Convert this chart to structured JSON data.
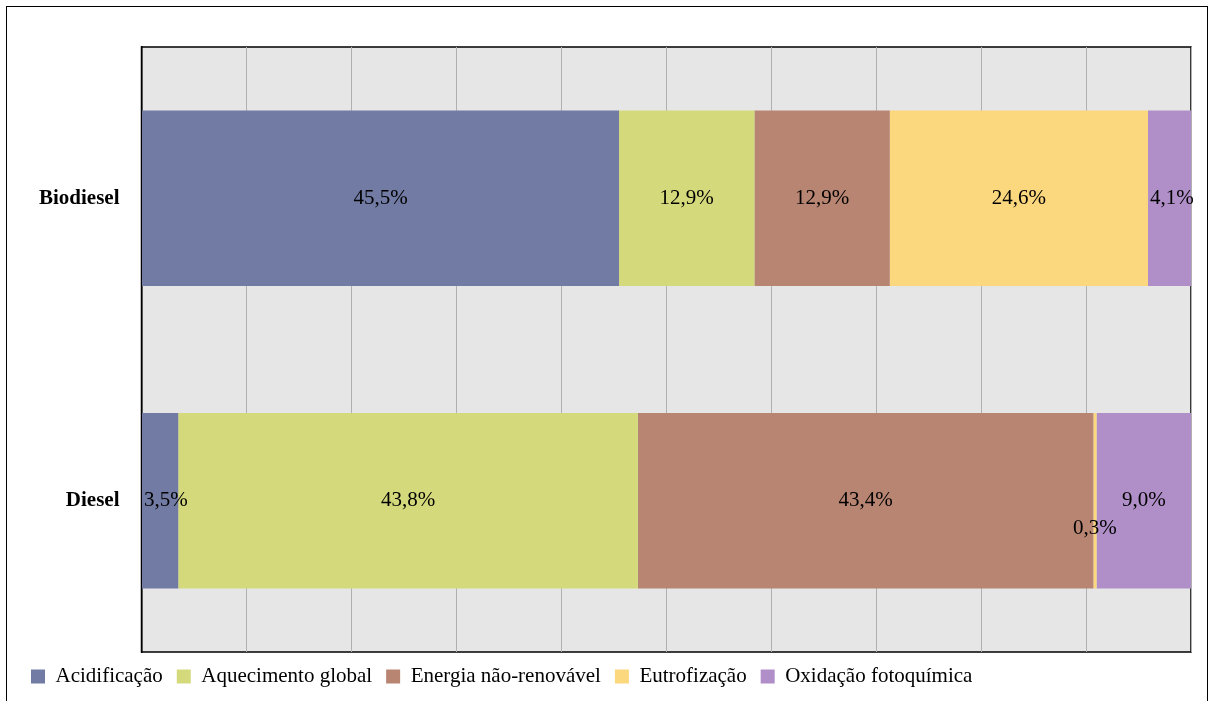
{
  "chart_data": {
    "type": "bar",
    "orientation": "horizontal",
    "stacked": true,
    "categories": [
      "Biodiesel",
      "Diesel"
    ],
    "series": [
      {
        "name": "Acidificação",
        "color": "#717ba3",
        "values": [
          45.5,
          3.5
        ],
        "value_labels": [
          "45,5%",
          "3,5%"
        ]
      },
      {
        "name": "Aquecimento global",
        "color": "#d4da7c",
        "values": [
          12.9,
          43.8
        ],
        "value_labels": [
          "12,9%",
          "43,8%"
        ]
      },
      {
        "name": "Energia não-renovável",
        "color": "#b88572",
        "values": [
          12.9,
          43.4
        ],
        "value_labels": [
          "12,9%",
          "43,4%"
        ]
      },
      {
        "name": "Eutrofização",
        "color": "#fbd77e",
        "values": [
          24.6,
          0.3
        ],
        "value_labels": [
          "24,6%",
          "0,3%"
        ]
      },
      {
        "name": "Oxidação fotoquímica",
        "color": "#b08fc8",
        "values": [
          4.1,
          9.0
        ],
        "value_labels": [
          "4,1%",
          "9,0%"
        ]
      }
    ],
    "xlim": [
      0,
      100
    ],
    "xticks": [
      {
        "value": 0,
        "label": null
      },
      {
        "value": 10,
        "label": null
      },
      {
        "value": 20,
        "label": null
      },
      {
        "value": 30,
        "label": null
      },
      {
        "value": 40,
        "label": null
      },
      {
        "value": 50,
        "label": null
      },
      {
        "value": 60,
        "label": null
      },
      {
        "value": 70,
        "label": null
      },
      {
        "value": 80,
        "label": null
      },
      {
        "value": 90,
        "label": null
      },
      {
        "value": 100,
        "label": null
      }
    ],
    "grid": "x",
    "tick_labels": "y",
    "legend": "bottom"
  }
}
